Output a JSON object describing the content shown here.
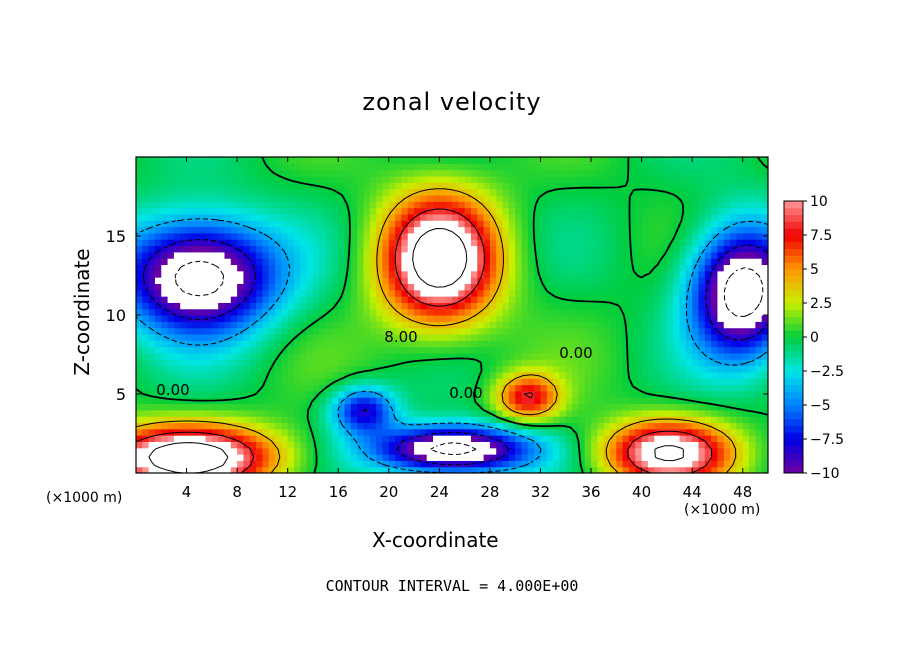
{
  "chart_data": {
    "type": "heatmap",
    "title": "zonal velocity",
    "xlabel": "X-coordinate",
    "ylabel": "Z-coordinate",
    "x_unit_label": "(×1000 m)",
    "footer": "CONTOUR INTERVAL = 4.000E+00",
    "xlim": [
      0,
      50
    ],
    "ylim": [
      0,
      20
    ],
    "x_ticks": [
      "4",
      "8",
      "12",
      "16",
      "20",
      "24",
      "28",
      "32",
      "36",
      "40",
      "44",
      "48"
    ],
    "x_tick_values": [
      4,
      8,
      12,
      16,
      20,
      24,
      28,
      32,
      36,
      40,
      44,
      48
    ],
    "y_ticks": [
      "5",
      "10",
      "15"
    ],
    "y_tick_values": [
      5,
      10,
      15
    ],
    "colorbar": {
      "range": [
        -10,
        10
      ],
      "ticks": [
        "10",
        "7.5",
        "5",
        "2.5",
        "0",
        "−2.5",
        "−5",
        "−7.5",
        "−10"
      ],
      "tick_values": [
        10,
        7.5,
        5,
        2.5,
        0,
        -2.5,
        -5,
        -7.5,
        -10
      ]
    },
    "contour_labels": [
      "8.00",
      "0.00",
      "0.00",
      "0.00"
    ],
    "contour_interval": 4,
    "field_features": [
      {
        "kind": "max",
        "x": 24,
        "z": 13.5,
        "value": 14,
        "sx": 4.5,
        "sz": 4
      },
      {
        "kind": "max",
        "x": 31,
        "z": 4.8,
        "value": 8,
        "sx": 2.5,
        "sz": 1.5
      },
      {
        "kind": "max",
        "x": 4,
        "z": 1.0,
        "value": 14,
        "sx": 7,
        "sz": 2
      },
      {
        "kind": "max",
        "x": 42,
        "z": 1.3,
        "value": 12,
        "sx": 5,
        "sz": 2
      },
      {
        "kind": "min",
        "x": 5,
        "z": 12.5,
        "value": -14,
        "sx": 6,
        "sz": 3.5
      },
      {
        "kind": "min",
        "x": 48,
        "z": 11.5,
        "value": -14,
        "sx": 4,
        "sz": 4
      },
      {
        "kind": "min",
        "x": 25,
        "z": 1.5,
        "value": -14,
        "sx": 6,
        "sz": 1.5
      },
      {
        "kind": "min",
        "x": 18,
        "z": 4.0,
        "value": -8,
        "sx": 2.5,
        "sz": 1.5
      }
    ]
  }
}
